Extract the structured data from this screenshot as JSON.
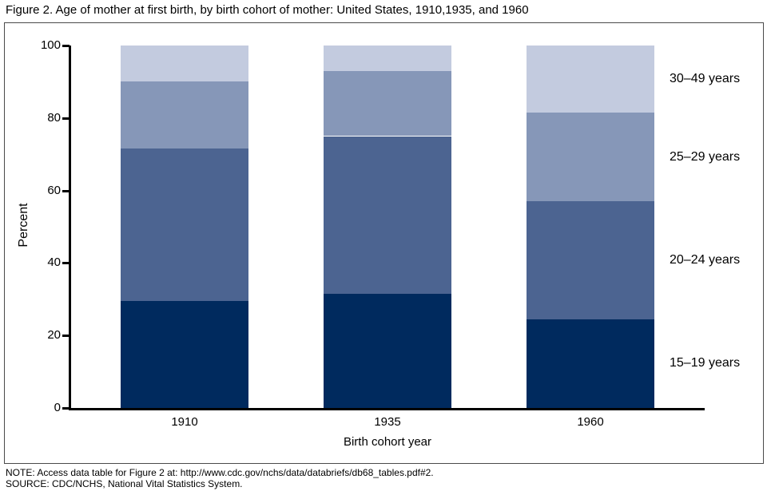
{
  "figure": {
    "title": "Figure 2. Age of mother at first birth, by birth cohort of mother: United States, 1910,1935, and 1960",
    "note": "NOTE: Access data table for Figure 2 at: http://www.cdc.gov/nchs/data/databriefs/db68_tables.pdf#2.",
    "source": "SOURCE: CDC/NCHS, National Vital Statistics System."
  },
  "chart_data": {
    "type": "bar",
    "stacked": true,
    "title": "Figure 2. Age of mother at first birth, by birth cohort of mother: United States, 1910,1935, and 1960",
    "categories": [
      "1910",
      "1935",
      "1960"
    ],
    "series": [
      {
        "name": "15–19 years",
        "values": [
          29.5,
          31.5,
          24.5
        ],
        "color": "#002a5e"
      },
      {
        "name": "20–24 years",
        "values": [
          42.0,
          43.5,
          32.5
        ],
        "color": "#4c6491"
      },
      {
        "name": "25–29 years",
        "values": [
          18.5,
          18.0,
          24.5
        ],
        "color": "#8697b8"
      },
      {
        "name": "30–49 years",
        "values": [
          10.0,
          7.0,
          18.5
        ],
        "color": "#c3cbdf"
      }
    ],
    "xlabel": "Birth cohort year",
    "ylabel": "Percent",
    "ylim": [
      0,
      100
    ],
    "yticks": [
      0,
      20,
      40,
      60,
      80,
      100
    ],
    "grid": false,
    "legend_position": "right-inline-labels",
    "axis_color": "#000000",
    "frame_color": "#4a4a4a"
  }
}
